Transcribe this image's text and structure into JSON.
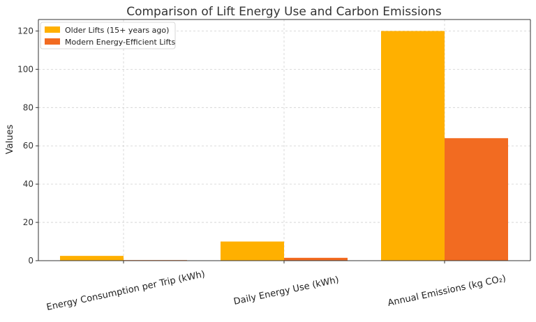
{
  "chart_data": {
    "type": "bar",
    "title": "Comparison of Lift Energy Use and Carbon Emissions",
    "xlabel": "",
    "ylabel": "Values",
    "categories": [
      "Energy Consumption per Trip (kWh)",
      "Daily Energy Use (kWh)",
      "Annual Emissions (kg CO₂)"
    ],
    "series": [
      {
        "name": "Older Lifts (15+ years ago)",
        "color": "#FFB000",
        "values": [
          2.5,
          10,
          120
        ]
      },
      {
        "name": "Modern Energy-Efficient Lifts",
        "color": "#F26B21",
        "values": [
          0.3,
          1.5,
          64
        ]
      }
    ],
    "ylim": [
      0,
      126
    ],
    "yticks": [
      0,
      20,
      40,
      60,
      80,
      100,
      120
    ],
    "grid": true,
    "legend_position": "top-left"
  }
}
